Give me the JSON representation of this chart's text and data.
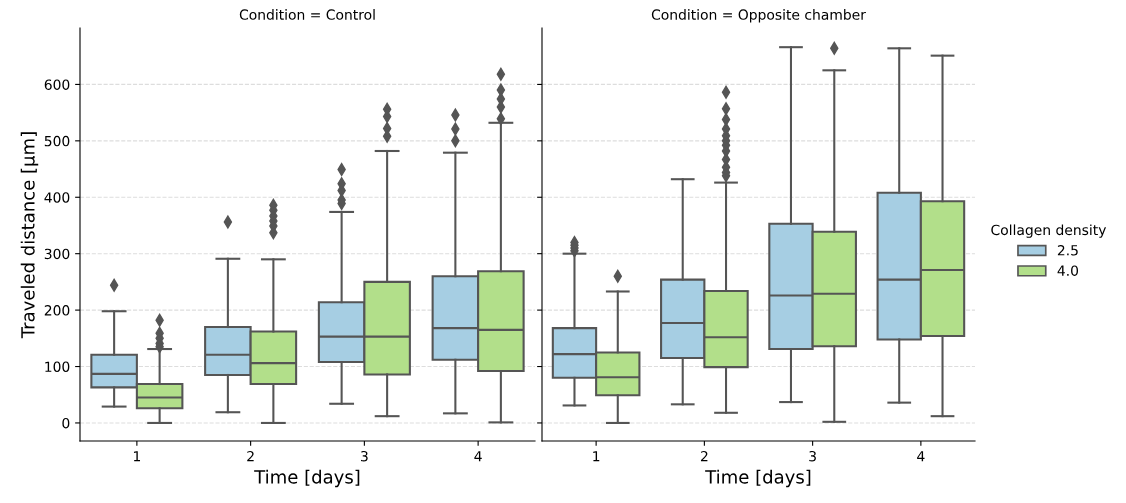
{
  "chart_data": [
    {
      "type": "box",
      "title": "Condition = Control",
      "xlabel": "Time [days]",
      "ylabel": "Traveled distance [μm]",
      "categories": [
        "1",
        "2",
        "3",
        "4"
      ],
      "ylim": [
        -32,
        700
      ],
      "yticks": [
        0,
        100,
        200,
        300,
        400,
        500,
        600
      ],
      "grid": "y",
      "marker": "diamond",
      "legend": "right",
      "legend_title": "Collagen density",
      "series": [
        {
          "name": "2.5",
          "color": "#a6cee3",
          "boxes": [
            {
              "low": 29,
              "q1": 63,
              "median": 87,
              "q3": 121,
              "high": 198,
              "outliers": [
                244
              ]
            },
            {
              "low": 19,
              "q1": 85,
              "median": 121,
              "q3": 170,
              "high": 291,
              "outliers": [
                356
              ]
            },
            {
              "low": 34,
              "q1": 108,
              "median": 153,
              "q3": 214,
              "high": 374,
              "outliers": [
                389,
                395,
                412,
                424,
                449
              ]
            },
            {
              "low": 17,
              "q1": 112,
              "median": 168,
              "q3": 260,
              "high": 479,
              "outliers": [
                500,
                521,
                546
              ]
            }
          ]
        },
        {
          "name": "4.0",
          "color": "#b2df8a",
          "boxes": [
            {
              "low": 0,
              "q1": 26,
              "median": 45,
              "q3": 69,
              "high": 131,
              "outliers": [
                135,
                141,
                150,
                159,
                182
              ]
            },
            {
              "low": 0,
              "q1": 69,
              "median": 106,
              "q3": 162,
              "high": 290,
              "outliers": [
                337,
                349,
                358,
                367,
                377,
                386
              ]
            },
            {
              "low": 12,
              "q1": 86,
              "median": 153,
              "q3": 250,
              "high": 482,
              "outliers": [
                508,
                522,
                543,
                556
              ]
            },
            {
              "low": 1,
              "q1": 92,
              "median": 165,
              "q3": 269,
              "high": 532,
              "outliers": [
                539,
                560,
                574,
                590,
                618
              ]
            }
          ]
        }
      ]
    },
    {
      "type": "box",
      "title": "Condition = Opposite chamber",
      "xlabel": "Time [days]",
      "categories": [
        "1",
        "2",
        "3",
        "4"
      ],
      "ylim": [
        -32,
        700
      ],
      "yticks": [
        0,
        100,
        200,
        300,
        400,
        500,
        600
      ],
      "tick_labels": "x",
      "grid": "y",
      "marker": "diamond",
      "series": [
        {
          "color": "#a6cee3",
          "boxes": [
            {
              "low": 31,
              "q1": 80,
              "median": 122,
              "q3": 168,
              "high": 300,
              "outliers": [
                305,
                310,
                315,
                320
              ]
            },
            {
              "low": 33,
              "q1": 115,
              "median": 177,
              "q3": 254,
              "high": 432
            },
            {
              "low": 37,
              "q1": 131,
              "median": 226,
              "q3": 353,
              "high": 666
            },
            {
              "low": 36,
              "q1": 148,
              "median": 254,
              "q3": 408,
              "high": 664
            }
          ]
        },
        {
          "color": "#b2df8a",
          "boxes": [
            {
              "low": 0,
              "q1": 49,
              "median": 81,
              "q3": 125,
              "high": 233,
              "outliers": [
                260
              ]
            },
            {
              "low": 18,
              "q1": 99,
              "median": 152,
              "q3": 234,
              "high": 426,
              "outliers": [
                438,
                444,
                453,
                467,
                482,
                492,
                500,
                509,
                521,
                538,
                557,
                586
              ]
            },
            {
              "low": 2,
              "q1": 136,
              "median": 229,
              "q3": 339,
              "high": 625,
              "outliers": [
                664
              ]
            },
            {
              "low": 12,
              "q1": 154,
              "median": 271,
              "q3": 393,
              "high": 651
            }
          ]
        }
      ]
    }
  ]
}
